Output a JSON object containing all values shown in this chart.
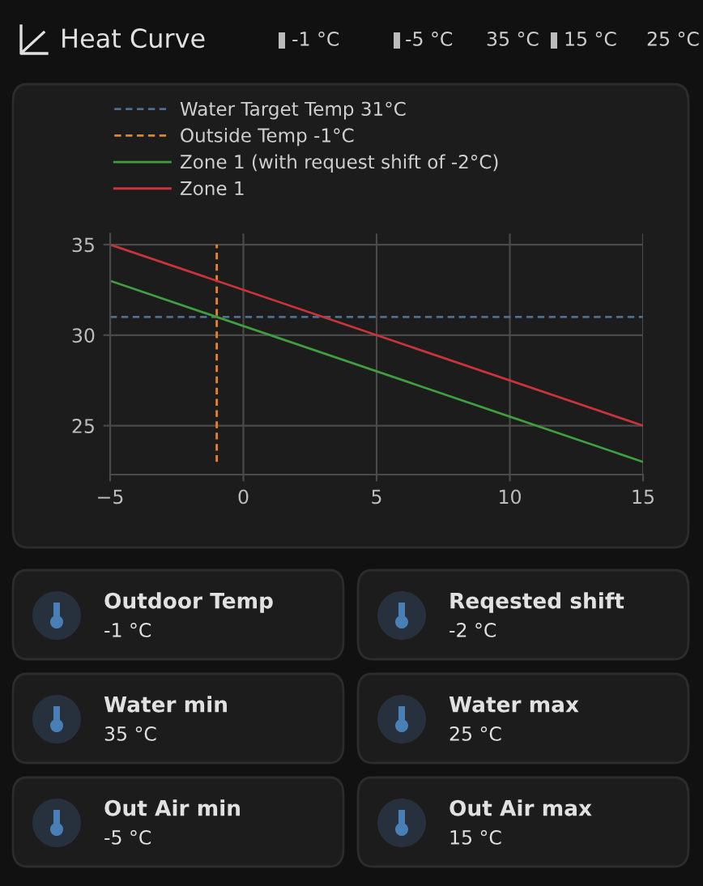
{
  "chart_data": [
    {
      "type": "other",
      "title": "Heat Curve",
      "annotations": [
        "-1 °C",
        "-5 °C",
        "35 °C",
        "15 °C",
        "25 °C",
        "Outdoor Temp",
        "-1 °C",
        "Reqested shift",
        "-2 °C",
        "Water min",
        "35 °C",
        "Water max",
        "25 °C",
        "Out Air min",
        "-5 °C",
        "Out Air max",
        "15 °C"
      ]
    },
    {
      "type": "line",
      "xlim": [
        -5,
        15
      ],
      "xticks": [
        -5,
        0,
        5,
        10,
        15
      ],
      "ylim": [
        22.3,
        35.6
      ],
      "yticks": [
        25,
        30,
        35
      ],
      "grid": true,
      "legend": "top left",
      "series": [
        {
          "name": "Water Target Temp 31°C",
          "color": "#4f6d8f",
          "line_style": "dashed",
          "x": [
            -5,
            15
          ],
          "values": [
            31,
            31
          ]
        },
        {
          "name": "Outside Temp -1°C",
          "color": "#d9883a",
          "line_style": "dashed",
          "x": [
            -1,
            -1
          ],
          "values": [
            23,
            35
          ]
        },
        {
          "name": "Zone 1 (with request shift of -2°C)",
          "color": "#3f9e3f",
          "line_style": "solid",
          "x": [
            -5,
            15
          ],
          "values": [
            33,
            23
          ]
        },
        {
          "name": "Zone 1",
          "color": "#c8343c",
          "line_style": "solid",
          "x": [
            -5,
            15
          ],
          "values": [
            35,
            25
          ]
        }
      ]
    }
  ]
}
